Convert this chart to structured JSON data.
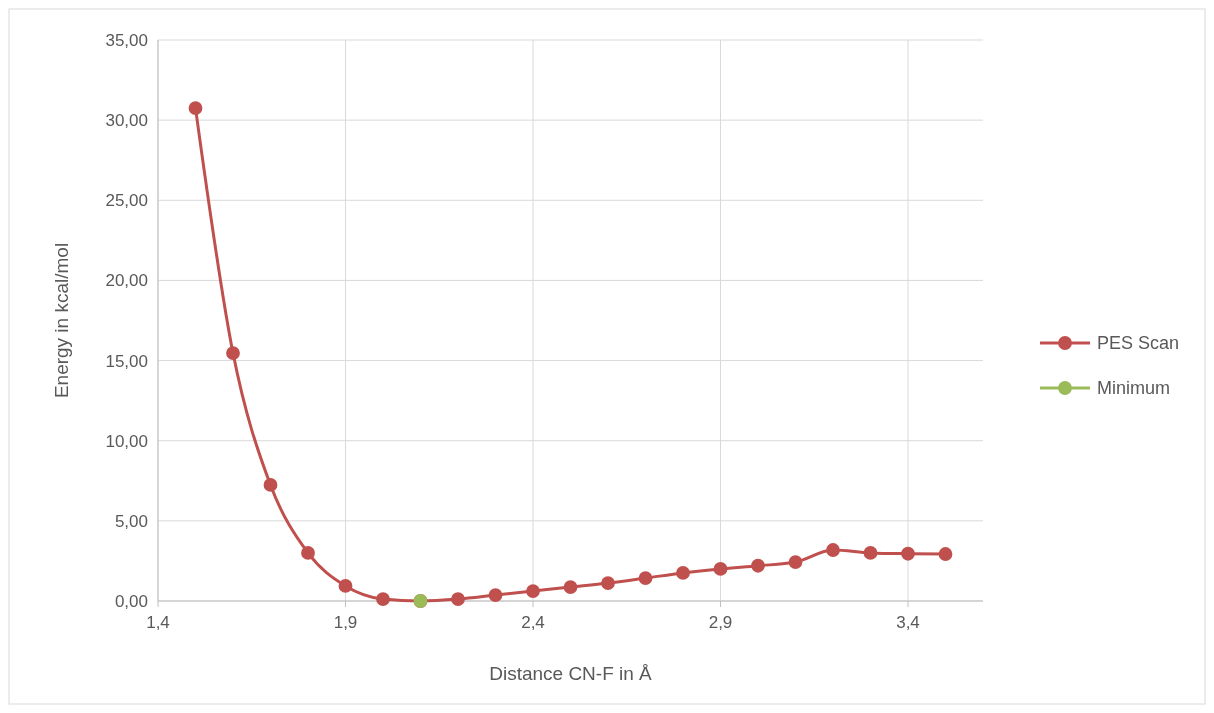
{
  "chart_data": {
    "type": "line",
    "xlabel": "Distance CN-F in Å",
    "ylabel": "Energy in kcal/mol",
    "xlim": [
      1.4,
      3.6
    ],
    "xticks": [
      {
        "value": 1.4,
        "label": "1,4"
      },
      {
        "value": 1.9,
        "label": "1,9"
      },
      {
        "value": 2.4,
        "label": "2,4"
      },
      {
        "value": 2.9,
        "label": "2,9"
      },
      {
        "value": 3.4,
        "label": "3,4"
      }
    ],
    "ylim": [
      0,
      35
    ],
    "yticks": [
      {
        "value": 0,
        "label": "0,00"
      },
      {
        "value": 5,
        "label": "5,00"
      },
      {
        "value": 10,
        "label": "10,00"
      },
      {
        "value": 15,
        "label": "15,00"
      },
      {
        "value": 20,
        "label": "20,00"
      },
      {
        "value": 25,
        "label": "25,00"
      },
      {
        "value": 30,
        "label": "30,00"
      },
      {
        "value": 35,
        "label": "35,00"
      }
    ],
    "grid": true,
    "legend": "right",
    "marker": "circle",
    "line_style": "solid",
    "series": [
      {
        "name": "PES Scan",
        "color": "#c0504d",
        "x": [
          1.5,
          1.6,
          1.7,
          1.8,
          1.9,
          2.0,
          2.1,
          2.2,
          2.3,
          2.4,
          2.5,
          2.6,
          2.7,
          2.8,
          2.9,
          3.0,
          3.1,
          3.2,
          3.3,
          3.4,
          3.5
        ],
        "values": [
          30.75,
          15.47,
          7.24,
          3.0,
          0.94,
          0.12,
          0,
          0.12,
          0.37,
          0.62,
          0.87,
          1.12,
          1.43,
          1.75,
          2.0,
          2.2,
          2.43,
          3.18,
          3.0,
          2.95,
          2.93
        ]
      },
      {
        "name": "Minimum",
        "type": "scatter",
        "color": "#9bbb59",
        "x": [
          2.1
        ],
        "values": [
          0
        ]
      }
    ]
  }
}
